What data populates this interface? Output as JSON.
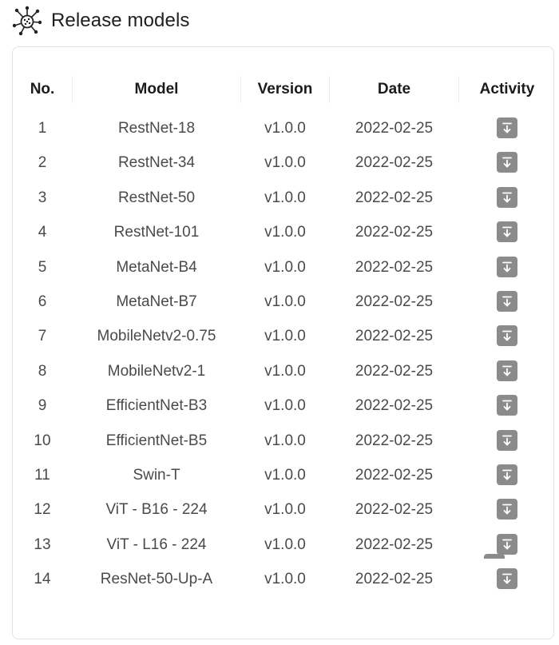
{
  "header": {
    "title": "Release models",
    "logo_icon": "network-hub-icon"
  },
  "table": {
    "columns": [
      "No.",
      "Model",
      "Version",
      "Date",
      "Activity"
    ],
    "rows": [
      {
        "no": "1",
        "model": "RestNet-18",
        "version": "v1.0.0",
        "date": "2022-02-25",
        "action_icon": "download-icon"
      },
      {
        "no": "2",
        "model": "RestNet-34",
        "version": "v1.0.0",
        "date": "2022-02-25",
        "action_icon": "download-icon"
      },
      {
        "no": "3",
        "model": "RestNet-50",
        "version": "v1.0.0",
        "date": "2022-02-25",
        "action_icon": "download-icon"
      },
      {
        "no": "4",
        "model": "RestNet-101",
        "version": "v1.0.0",
        "date": "2022-02-25",
        "action_icon": "download-icon"
      },
      {
        "no": "5",
        "model": "MetaNet-B4",
        "version": "v1.0.0",
        "date": "2022-02-25",
        "action_icon": "download-icon"
      },
      {
        "no": "6",
        "model": "MetaNet-B7",
        "version": "v1.0.0",
        "date": "2022-02-25",
        "action_icon": "download-icon"
      },
      {
        "no": "7",
        "model": "MobileNetv2-0.75",
        "version": "v1.0.0",
        "date": "2022-02-25",
        "action_icon": "download-icon"
      },
      {
        "no": "8",
        "model": "MobileNetv2-1",
        "version": "v1.0.0",
        "date": "2022-02-25",
        "action_icon": "download-icon"
      },
      {
        "no": "9",
        "model": "EfficientNet-B3",
        "version": "v1.0.0",
        "date": "2022-02-25",
        "action_icon": "download-icon"
      },
      {
        "no": "10",
        "model": "EfficientNet-B5",
        "version": "v1.0.0",
        "date": "2022-02-25",
        "action_icon": "download-icon"
      },
      {
        "no": "11",
        "model": "Swin-T",
        "version": "v1.0.0",
        "date": "2022-02-25",
        "action_icon": "download-icon"
      },
      {
        "no": "12",
        "model": "ViT - B16 - 224",
        "version": "v1.0.0",
        "date": "2022-02-25",
        "action_icon": "download-icon"
      },
      {
        "no": "13",
        "model": "ViT - L16 - 224",
        "version": "v1.0.0",
        "date": "2022-02-25",
        "action_icon": "download-icon"
      },
      {
        "no": "14",
        "model": "ResNet-50-Up-A",
        "version": "v1.0.0",
        "date": "2022-02-25",
        "action_icon": "download-icon"
      }
    ]
  },
  "colors": {
    "button_bg": "#8b8b8b",
    "header_text": "#1b1b1b",
    "cell_text": "#4a4a4a",
    "border": "#e3e3e3"
  }
}
